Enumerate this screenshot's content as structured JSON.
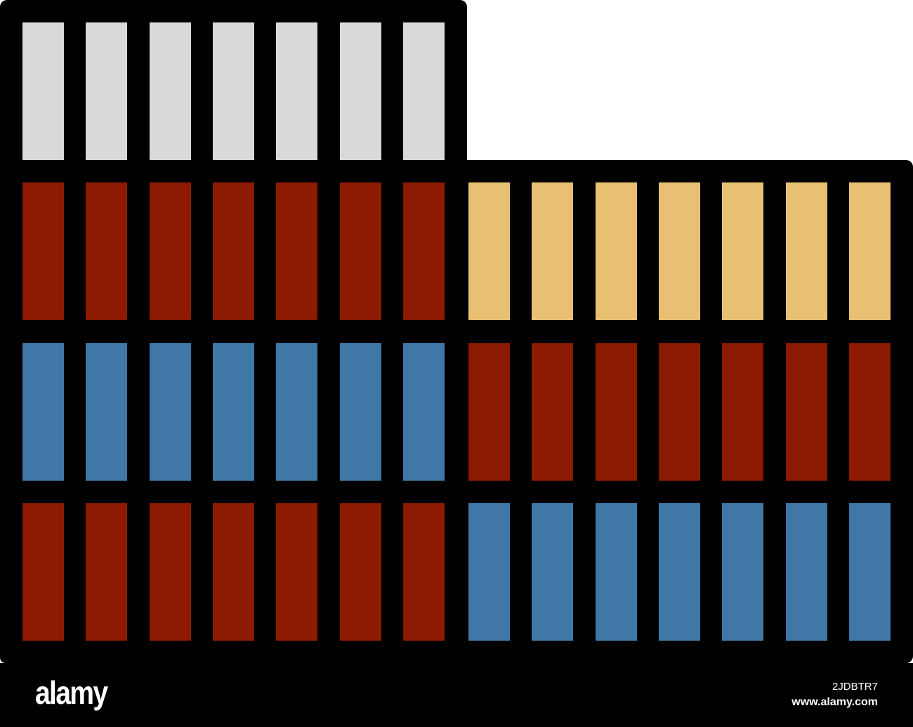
{
  "colors": {
    "gray": "#d9d9d9",
    "red": "#8b1a00",
    "yellow": "#e8c074",
    "blue": "#3f78a6",
    "outline": "#000000"
  },
  "left_stack": {
    "rows": [
      "gray",
      "red",
      "blue",
      "red"
    ],
    "columns": 7
  },
  "right_stack": {
    "rows": [
      "yellow",
      "red",
      "blue"
    ],
    "columns": 7
  },
  "footer": {
    "logo": "alamy",
    "image_id": "2JDBTR7",
    "site": "www.alamy.com"
  }
}
